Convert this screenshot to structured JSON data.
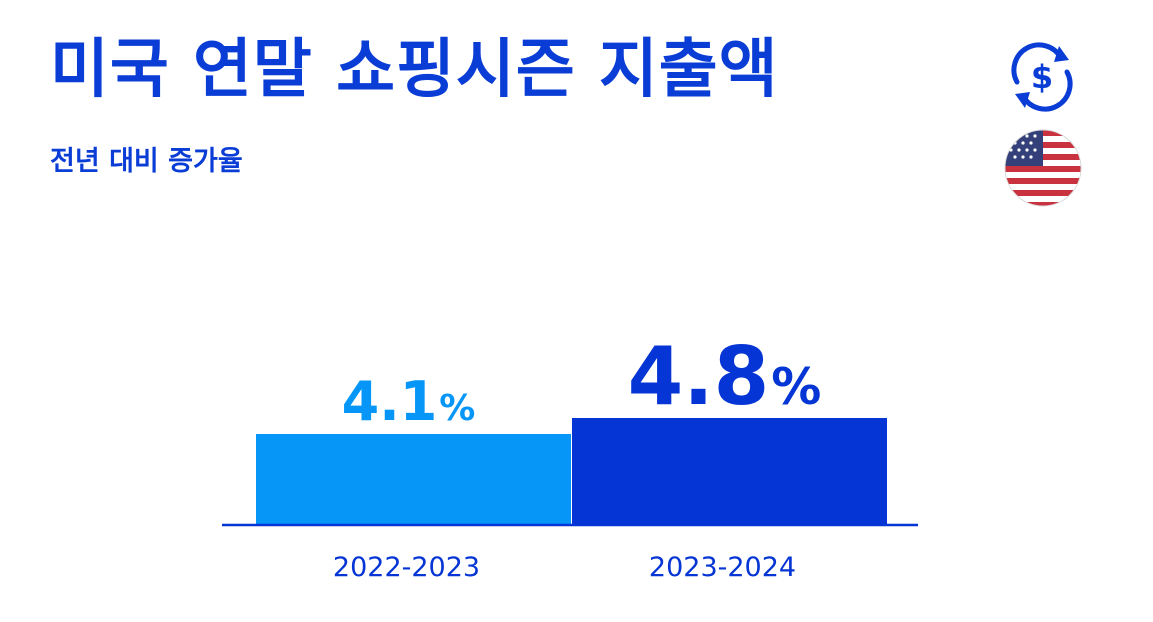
{
  "title": "미국 연말 쇼핑시즌 지출액",
  "subtitle": "전년 대비 증가율",
  "icons": {
    "top": "currency-exchange-icon",
    "bottom": "us-flag-icon"
  },
  "colors": {
    "title": "#0a3cd6",
    "bar_1": "#0596f7",
    "bar_2": "#0535d4",
    "axis": "#0535d4"
  },
  "chart_data": {
    "type": "bar",
    "categories": [
      "2022-2023",
      "2023-2024"
    ],
    "values": [
      4.1,
      4.8
    ],
    "value_labels": [
      {
        "number": "4.1",
        "unit": "%"
      },
      {
        "number": "4.8",
        "unit": "%"
      }
    ],
    "title": "미국 연말 쇼핑시즌 지출액",
    "subtitle": "전년 대비 증가율",
    "grid": false,
    "legend": "none"
  }
}
